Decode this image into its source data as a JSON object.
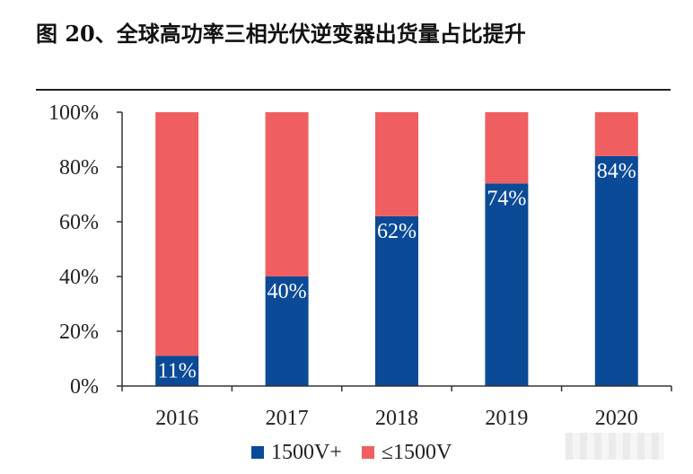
{
  "title": "图 20、全球高功率三相光伏逆变器出货量占比提升",
  "chart_data": {
    "type": "bar",
    "stacked": true,
    "categories": [
      "2016",
      "2017",
      "2018",
      "2019",
      "2020"
    ],
    "series": [
      {
        "name": "1500V+",
        "values": [
          11,
          40,
          62,
          74,
          84
        ],
        "color": "#0b4a96",
        "data_labels": [
          "11%",
          "40%",
          "62%",
          "74%",
          "84%"
        ]
      },
      {
        "name": "≤1500V",
        "values": [
          89,
          60,
          38,
          26,
          16
        ],
        "color": "#ef5f61"
      }
    ],
    "ylim": [
      0,
      100
    ],
    "yticks": [
      "0%",
      "20%",
      "40%",
      "60%",
      "80%",
      "100%"
    ],
    "grid": false,
    "legend": "bottom"
  }
}
